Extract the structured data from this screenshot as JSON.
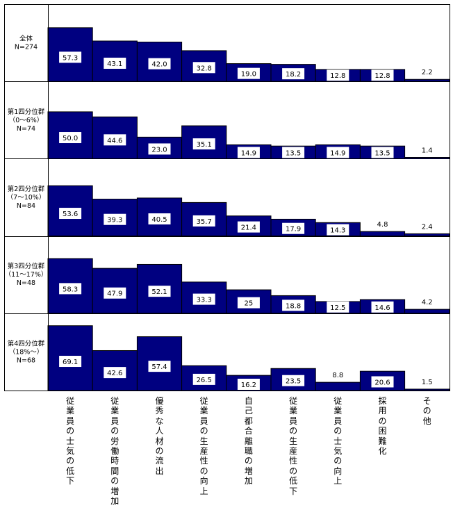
{
  "chart_data": {
    "type": "bar",
    "categories": [
      "従業員の士気の低下",
      "従業員の労働時間の増加",
      "優秀な人材の流出",
      "従業員の生産性の向上",
      "自己都合離職の増加",
      "従業員の生産性の低下",
      "従業員の士気の向上",
      "採用の困難化",
      "その他"
    ],
    "panels": [
      {
        "label": "全体\nN=274",
        "values": [
          57.3,
          43.1,
          42.0,
          32.8,
          19.0,
          18.2,
          12.8,
          12.8,
          2.2
        ],
        "value_labels": [
          "57.3",
          "43.1",
          "42.0",
          "32.8",
          "19.0",
          "18.2",
          "12.8",
          "12.8",
          "2.2"
        ]
      },
      {
        "label": "第1四分位群\n（0～6%）\nN=74",
        "values": [
          50.0,
          44.6,
          23.0,
          35.1,
          14.9,
          13.5,
          14.9,
          13.5,
          1.4
        ],
        "value_labels": [
          "50.0",
          "44.6",
          "23.0",
          "35.1",
          "14.9",
          "13.5",
          "14.9",
          "13.5",
          "1.4"
        ]
      },
      {
        "label": "第2四分位群\n（7～10%）\nN=84",
        "values": [
          53.6,
          39.3,
          40.5,
          35.7,
          21.4,
          17.9,
          14.3,
          4.8,
          2.4
        ],
        "value_labels": [
          "53.6",
          "39.3",
          "40.5",
          "35.7",
          "21.4",
          "17.9",
          "14.3",
          "4.8",
          "2.4"
        ]
      },
      {
        "label": "第3四分位群\n（11～17%）\nN=48",
        "values": [
          58.3,
          47.9,
          52.1,
          33.3,
          25.0,
          18.8,
          12.5,
          14.6,
          4.2
        ],
        "value_labels": [
          "58.3",
          "47.9",
          "52.1",
          "33.3",
          "25",
          "18.8",
          "12.5",
          "14.6",
          "4.2"
        ]
      },
      {
        "label": "第4四分位群\n（18%～）\nN=68",
        "values": [
          69.1,
          42.6,
          57.4,
          26.5,
          16.2,
          23.5,
          8.8,
          20.6,
          1.5
        ],
        "value_labels": [
          "69.1",
          "42.6",
          "57.4",
          "26.5",
          "16.2",
          "23.5",
          "8.8",
          "20.6",
          "1.5"
        ]
      }
    ],
    "ylim": [
      0,
      70
    ],
    "grid": false,
    "legend": "none",
    "colors": {
      "bar": "#000080",
      "bar_stroke": "#000000",
      "label_bg": "#ffffff",
      "border": "#000000"
    }
  }
}
